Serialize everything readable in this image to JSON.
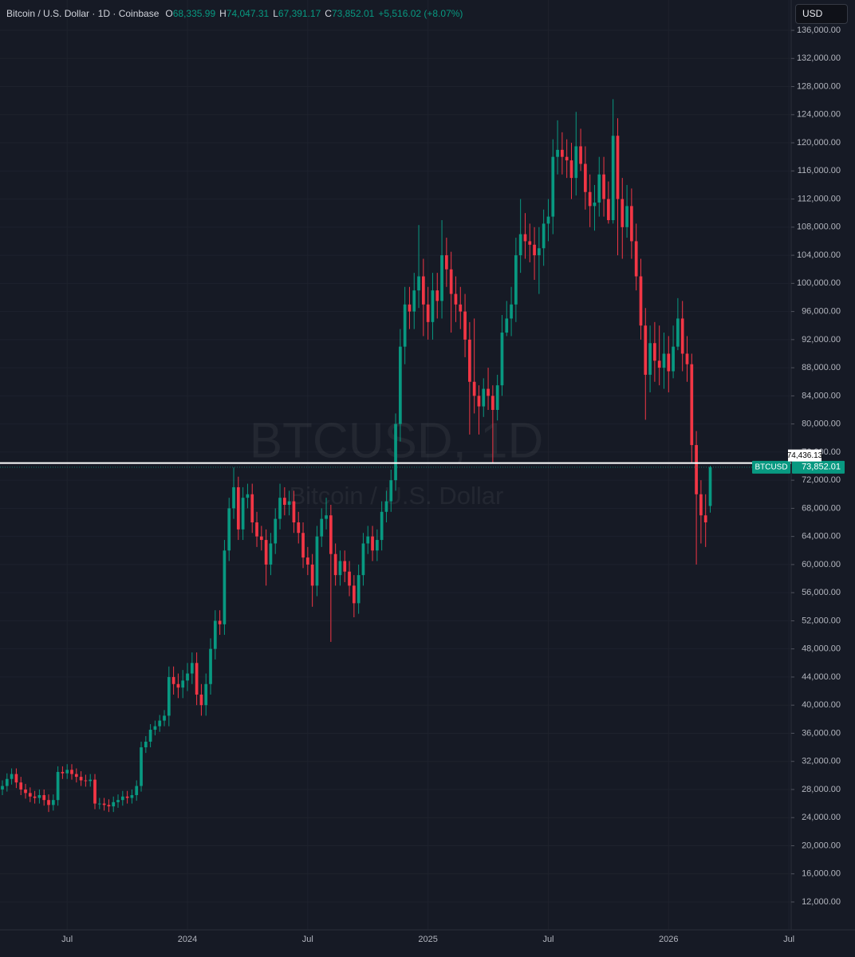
{
  "chart_data": {
    "type": "candlestick",
    "header": {
      "description": "Bitcoin / U.S. Dollar · 1D · Coinbase",
      "fields": [
        {
          "key": "O",
          "value": "68,335.99"
        },
        {
          "key": "H",
          "value": "74,047.31"
        },
        {
          "key": "L",
          "value": "67,391.17"
        },
        {
          "key": "C",
          "value": "73,852.01"
        }
      ],
      "change": "+5,516.02 (+8.07%)"
    },
    "currency": "USD",
    "watermark": {
      "symbol": "BTCUSD, 1D",
      "description": "Bitcoin / U.S. Dollar"
    },
    "categories": [
      null,
      null,
      null,
      null,
      null,
      null,
      null,
      null,
      null,
      null,
      null,
      null,
      null,
      null,
      "Jul",
      null,
      null,
      null,
      null,
      null,
      null,
      null,
      null,
      null,
      null,
      null,
      null,
      null,
      null,
      null,
      null,
      null,
      null,
      null,
      null,
      null,
      null,
      null,
      null,
      null,
      "2024",
      null,
      null,
      null,
      null,
      null,
      null,
      null,
      null,
      null,
      null,
      null,
      null,
      null,
      null,
      null,
      null,
      null,
      null,
      null,
      null,
      null,
      null,
      null,
      null,
      null,
      "Jul",
      null,
      null,
      null,
      null,
      null,
      null,
      null,
      null,
      null,
      null,
      null,
      null,
      null,
      null,
      null,
      null,
      null,
      null,
      null,
      null,
      null,
      null,
      null,
      null,
      null,
      "2025",
      null,
      null,
      null,
      null,
      null,
      null,
      null,
      null,
      null,
      null,
      null,
      null,
      null,
      null,
      null,
      null,
      null,
      null,
      null,
      null,
      null,
      null,
      null,
      null,
      null,
      "Jul",
      null,
      null,
      null,
      null,
      null,
      null,
      null,
      null,
      null,
      null,
      null,
      null,
      null,
      null,
      null,
      null,
      null,
      null,
      null,
      null,
      null,
      null,
      null,
      null,
      null,
      "2026",
      null,
      null,
      null,
      null,
      null,
      null,
      null,
      null,
      null,
      null,
      null,
      null,
      null,
      null,
      null,
      null,
      null,
      null,
      null,
      null,
      null,
      null,
      null,
      null,
      null,
      "Jul"
    ],
    "series": [
      {
        "name": "BTCUSD",
        "up_color": "#089981",
        "down_color": "#f23645",
        "open": [
          28000,
          28500,
          29500,
          30200,
          29000,
          28000,
          27500,
          27000,
          26800,
          27200,
          26500,
          25800,
          26500,
          30500,
          30300,
          30800,
          30200,
          29800,
          29300,
          29200,
          29400,
          26000,
          26000,
          25800,
          25600,
          26200,
          26500,
          27000,
          26800,
          27200,
          28500,
          34000,
          34800,
          36500,
          37000,
          37800,
          38500,
          44000,
          43000,
          42500,
          43500,
          44500,
          46000,
          41500,
          40000,
          43000,
          48000,
          52000,
          51500,
          62000,
          68000,
          71000,
          65000,
          69500,
          70000,
          66000,
          64000,
          63500,
          60000,
          63000,
          66500,
          69500,
          68500,
          69000,
          66000,
          64500,
          61000,
          60000,
          57000,
          64000,
          66500,
          67000,
          61500,
          58500,
          60500,
          59000,
          57000,
          54500,
          58500,
          63000,
          64000,
          62000,
          63500,
          67500,
          69000,
          72000,
          80000,
          91000,
          97000,
          96000,
          99000,
          101000,
          97000,
          94500,
          99000,
          97500,
          104000,
          102000,
          98500,
          97000,
          96000,
          92000,
          86000,
          84000,
          82500,
          85000,
          84000,
          82000,
          85500,
          93000,
          95000,
          97000,
          104000,
          107000,
          106000,
          105500,
          104000,
          105000,
          108500,
          109500,
          118000,
          119000,
          118000,
          117500,
          115000,
          119500,
          117000,
          113000,
          111000,
          111500,
          115500,
          112000,
          109000,
          121000,
          112000,
          108000,
          111000,
          106000,
          101000,
          94000,
          87000,
          91500,
          89000,
          88000,
          90000,
          87500,
          91000,
          95000,
          90000,
          88500,
          77000,
          70000,
          67000,
          68335.99,
          null,
          null,
          null,
          null,
          null,
          null,
          null,
          null,
          null,
          null,
          null,
          null,
          null,
          null,
          null,
          null,
          null
        ],
        "high": [
          29300,
          30300,
          31000,
          31000,
          29800,
          28800,
          28300,
          27800,
          28000,
          28000,
          27300,
          27300,
          31300,
          31300,
          31600,
          31600,
          31000,
          30600,
          30100,
          30200,
          30200,
          26800,
          26800,
          26600,
          27000,
          27300,
          27800,
          27800,
          28000,
          29300,
          34800,
          35600,
          37300,
          37800,
          38600,
          39300,
          45500,
          45500,
          44500,
          45000,
          46000,
          47500,
          47500,
          43000,
          44500,
          49500,
          53500,
          53500,
          63500,
          69500,
          73800,
          72500,
          71000,
          71500,
          71500,
          67500,
          65500,
          65000,
          64500,
          68000,
          71500,
          71000,
          70500,
          70500,
          67500,
          66000,
          62500,
          61500,
          65500,
          68000,
          69500,
          68500,
          63000,
          62000,
          62000,
          60500,
          58500,
          60000,
          64500,
          65500,
          65500,
          65000,
          69000,
          70500,
          73500,
          81500,
          93500,
          99500,
          99500,
          101500,
          108300,
          103500,
          99500,
          101500,
          101500,
          109000,
          106500,
          104500,
          101000,
          99500,
          98500,
          94500,
          95000,
          85500,
          86500,
          88000,
          85500,
          87000,
          95500,
          97500,
          99500,
          106500,
          112000,
          110000,
          108500,
          108000,
          108000,
          110500,
          112000,
          120500,
          123200,
          121500,
          120500,
          120000,
          124400,
          122000,
          119500,
          115500,
          114000,
          118000,
          118000,
          114500,
          126200,
          123500,
          115000,
          114000,
          113500,
          108500,
          103500,
          96500,
          94000,
          94500,
          94000,
          93000,
          92500,
          94000,
          97900,
          97500,
          92500,
          90000,
          79000,
          72000,
          70000,
          74047.31,
          null,
          null,
          null,
          null,
          null,
          null,
          null,
          null,
          null,
          null,
          null,
          null,
          null,
          null,
          null,
          null,
          null
        ],
        "low": [
          27200,
          27700,
          28700,
          28200,
          27200,
          26700,
          26200,
          26000,
          26000,
          25700,
          24800,
          25000,
          25700,
          29500,
          29500,
          29400,
          29000,
          28500,
          28400,
          28400,
          25200,
          25200,
          25000,
          24800,
          24800,
          25400,
          25700,
          26000,
          26000,
          26400,
          27700,
          33200,
          34000,
          35700,
          36200,
          37000,
          37000,
          41500,
          41000,
          41000,
          42000,
          43000,
          40000,
          38500,
          38500,
          41500,
          46500,
          50000,
          50000,
          60500,
          66500,
          63500,
          63500,
          68000,
          64500,
          62500,
          62000,
          57000,
          58500,
          61500,
          65000,
          67000,
          67000,
          64500,
          63000,
          59500,
          58500,
          54000,
          55500,
          62500,
          65000,
          49000,
          57000,
          57000,
          57500,
          55500,
          52500,
          53000,
          57000,
          61500,
          60500,
          60500,
          62000,
          66000,
          67500,
          70500,
          77500,
          88500,
          93500,
          93500,
          96500,
          92500,
          92000,
          92000,
          95000,
          95000,
          99500,
          93000,
          94500,
          93500,
          89500,
          78500,
          81500,
          78500,
          81000,
          82000,
          74500,
          80500,
          84000,
          92500,
          92500,
          94500,
          101500,
          103500,
          103000,
          100500,
          98500,
          102500,
          106000,
          107000,
          115500,
          115500,
          115000,
          112000,
          112500,
          116000,
          110500,
          108000,
          107500,
          109500,
          109500,
          108500,
          108500,
          104000,
          103500,
          106500,
          103500,
          99000,
          92000,
          80600,
          84500,
          86000,
          85500,
          85000,
          84500,
          86500,
          90500,
          87500,
          86000,
          74500,
          60000,
          63000,
          62500,
          67391.17,
          null,
          null,
          null,
          null,
          null,
          null,
          null,
          null,
          null,
          null,
          null,
          null,
          null,
          null,
          null,
          null,
          null
        ],
        "close": [
          28500,
          29500,
          30200,
          29000,
          28000,
          27500,
          27000,
          26800,
          27200,
          26500,
          25800,
          26500,
          30500,
          30300,
          30800,
          30200,
          29800,
          29300,
          29200,
          29400,
          26000,
          26000,
          25800,
          25600,
          26200,
          26500,
          27000,
          26800,
          27200,
          28500,
          34000,
          34800,
          36500,
          37000,
          37800,
          38500,
          44000,
          43000,
          42500,
          43500,
          44500,
          46000,
          41500,
          40000,
          43000,
          48000,
          52000,
          51500,
          62000,
          68000,
          71000,
          65000,
          69500,
          70000,
          66000,
          64000,
          63500,
          60000,
          63000,
          66500,
          69500,
          68500,
          69000,
          66000,
          64500,
          61000,
          60000,
          57000,
          64000,
          66500,
          67000,
          61500,
          58500,
          60500,
          59000,
          57000,
          54500,
          58500,
          63000,
          64000,
          62000,
          63500,
          67500,
          69000,
          72000,
          80000,
          91000,
          97000,
          96000,
          99000,
          101000,
          97000,
          94500,
          99000,
          97500,
          104000,
          102000,
          98500,
          97000,
          96000,
          92000,
          86000,
          84000,
          82500,
          85000,
          84000,
          82000,
          85500,
          93000,
          95000,
          97000,
          104000,
          107000,
          106000,
          105500,
          104000,
          105000,
          108500,
          109500,
          118000,
          119000,
          118000,
          117500,
          115000,
          119500,
          117000,
          113000,
          111000,
          111500,
          115500,
          112000,
          109000,
          121000,
          112000,
          108000,
          111000,
          106000,
          101000,
          94000,
          87000,
          91500,
          89000,
          88000,
          90000,
          87500,
          91000,
          95000,
          90000,
          88500,
          77000,
          70000,
          67000,
          66000,
          73852.01,
          null,
          null,
          null,
          null,
          null,
          null,
          null,
          null,
          null,
          null,
          null,
          null,
          null,
          null,
          null,
          null,
          null
        ],
        "last_label": "73,852.01"
      }
    ],
    "ylim": [
      8028,
      140315
    ],
    "yticks": [
      {
        "value": 12000,
        "label": "12,000.00"
      },
      {
        "value": 16000,
        "label": "16,000.00"
      },
      {
        "value": 20000,
        "label": "20,000.00"
      },
      {
        "value": 24000,
        "label": "24,000.00"
      },
      {
        "value": 28000,
        "label": "28,000.00"
      },
      {
        "value": 32000,
        "label": "32,000.00"
      },
      {
        "value": 36000,
        "label": "36,000.00"
      },
      {
        "value": 40000,
        "label": "40,000.00"
      },
      {
        "value": 44000,
        "label": "44,000.00"
      },
      {
        "value": 48000,
        "label": "48,000.00"
      },
      {
        "value": 52000,
        "label": "52,000.00"
      },
      {
        "value": 56000,
        "label": "56,000.00"
      },
      {
        "value": 60000,
        "label": "60,000.00"
      },
      {
        "value": 64000,
        "label": "64,000.00"
      },
      {
        "value": 68000,
        "label": "68,000.00"
      },
      {
        "value": 72000,
        "label": "72,000.00"
      },
      {
        "value": 76000,
        "label": "76,000.00"
      },
      {
        "value": 80000,
        "label": "80,000.00"
      },
      {
        "value": 84000,
        "label": "84,000.00"
      },
      {
        "value": 88000,
        "label": "88,000.00"
      },
      {
        "value": 92000,
        "label": "92,000.00"
      },
      {
        "value": 96000,
        "label": "96,000.00"
      },
      {
        "value": 100000,
        "label": "100,000.00"
      },
      {
        "value": 104000,
        "label": "104,000.00"
      },
      {
        "value": 108000,
        "label": "108,000.00"
      },
      {
        "value": 112000,
        "label": "112,000.00"
      },
      {
        "value": 116000,
        "label": "116,000.00"
      },
      {
        "value": 120000,
        "label": "120,000.00"
      },
      {
        "value": 124000,
        "label": "124,000.00"
      },
      {
        "value": 128000,
        "label": "128,000.00"
      },
      {
        "value": 132000,
        "label": "132,000.00"
      },
      {
        "value": 136000,
        "label": "136,000.00"
      }
    ],
    "grid": true,
    "hline": {
      "value": 74436.13,
      "label": "74,436.13",
      "color": "#ffffff"
    }
  }
}
